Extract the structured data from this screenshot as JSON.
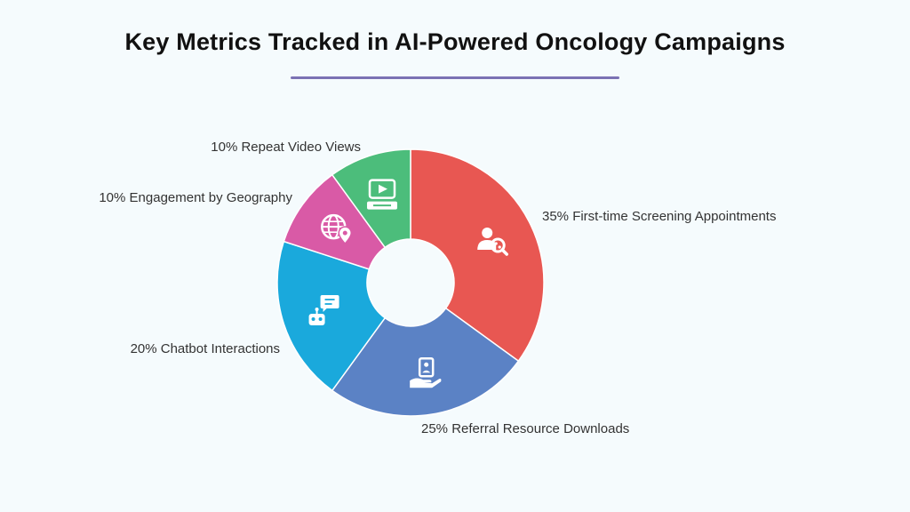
{
  "title": "Key Metrics Tracked in AI-Powered Oncology Campaigns",
  "chart_data": {
    "type": "pie",
    "variant": "donut",
    "slices": [
      {
        "label": "35% First-time Screening Appointments",
        "value": 35,
        "color": "#e85752",
        "icon": "person-search-icon"
      },
      {
        "label": "25% Referral Resource Downloads",
        "value": 25,
        "color": "#5b82c5",
        "icon": "hand-document-icon"
      },
      {
        "label": "20% Chatbot Interactions",
        "value": 20,
        "color": "#1aa9dc",
        "icon": "chatbot-icon"
      },
      {
        "label": "10% Engagement by Geography",
        "value": 10,
        "color": "#d95aa6",
        "icon": "globe-location-icon"
      },
      {
        "label": "10% Repeat Video Views",
        "value": 10,
        "color": "#4cbd7b",
        "icon": "video-player-icon"
      }
    ]
  }
}
